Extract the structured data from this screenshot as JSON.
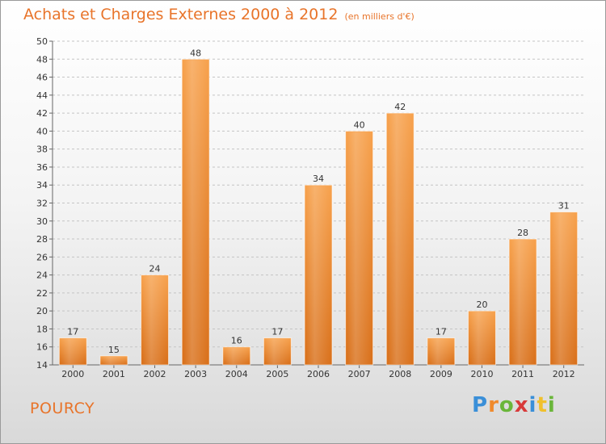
{
  "chart_data": {
    "type": "bar",
    "title": "Achats et Charges Externes 2000 à 2012",
    "subtitle": "(en milliers d'€)",
    "categories": [
      "2000",
      "2001",
      "2002",
      "2003",
      "2004",
      "2005",
      "2006",
      "2007",
      "2008",
      "2009",
      "2010",
      "2011",
      "2012"
    ],
    "values": [
      17,
      15,
      24,
      48,
      16,
      17,
      34,
      40,
      42,
      17,
      20,
      28,
      31
    ],
    "ylim": [
      14,
      50
    ],
    "yticks": [
      14,
      16,
      18,
      20,
      22,
      24,
      26,
      28,
      30,
      32,
      34,
      36,
      38,
      40,
      42,
      44,
      46,
      48,
      50
    ],
    "grid": true,
    "bar_color": "#f0883a"
  },
  "commune": "POURCY",
  "logo": {
    "letters": [
      "P",
      "r",
      "o",
      "x",
      "i",
      "t",
      "i"
    ],
    "colors": [
      "#3a8fd8",
      "#f08a2c",
      "#6ab63a",
      "#d83a3a",
      "#3a8fd8",
      "#f0c02c",
      "#6ab63a"
    ]
  }
}
